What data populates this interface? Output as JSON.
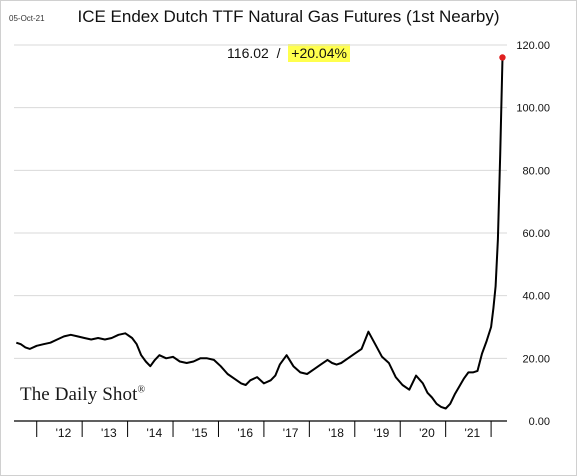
{
  "header": {
    "date": "05-Oct-21",
    "title": "ICE Endex Dutch TTF Natural Gas Futures (1st Nearby)",
    "last_value": "116.02",
    "separator": "/",
    "change": "+20.04%"
  },
  "brand": {
    "name": "The Daily Shot",
    "mark": "®"
  },
  "colors": {
    "line": "#000000",
    "endpoint": "#e02020",
    "highlight": "#ffff4d"
  },
  "chart_data": {
    "type": "line",
    "title": "ICE Endex Dutch TTF Natural Gas Futures (1st Nearby)",
    "xlabel": "",
    "ylabel": "",
    "ylim": [
      0,
      120
    ],
    "yticks": [
      0,
      20,
      40,
      60,
      80,
      100,
      120
    ],
    "ytick_labels": [
      "0.00",
      "20.00",
      "40.00",
      "60.00",
      "80.00",
      "100.00",
      "120.00"
    ],
    "xlim": [
      2011.0,
      2021.85
    ],
    "xticks": [
      2012,
      2013,
      2014,
      2015,
      2016,
      2017,
      2018,
      2019,
      2020,
      2021
    ],
    "xtick_labels": [
      "'12",
      "'13",
      "'14",
      "'15",
      "'16",
      "'17",
      "'18",
      "'19",
      "'20",
      "'21"
    ],
    "grid": "horizontal",
    "y_axis_side": "right",
    "series": [
      {
        "x": [
          2011.05,
          2011.15,
          2011.25,
          2011.35,
          2011.5,
          2011.65,
          2011.8,
          2011.95,
          2012.1,
          2012.25,
          2012.4,
          2012.55,
          2012.7,
          2012.85,
          2013.0,
          2013.15,
          2013.3,
          2013.45,
          2013.6,
          2013.7,
          2013.8,
          2013.9,
          2014.0,
          2014.1,
          2014.2,
          2014.35,
          2014.5,
          2014.65,
          2014.8,
          2014.95,
          2015.1,
          2015.25,
          2015.4,
          2015.55,
          2015.7,
          2015.85,
          2016.0,
          2016.1,
          2016.2,
          2016.35,
          2016.5,
          2016.65,
          2016.75,
          2016.85,
          2017.0,
          2017.15,
          2017.3,
          2017.45,
          2017.6,
          2017.75,
          2017.9,
          2018.0,
          2018.1,
          2018.2,
          2018.35,
          2018.5,
          2018.65,
          2018.8,
          2018.95,
          2019.1,
          2019.25,
          2019.4,
          2019.55,
          2019.7,
          2019.85,
          2020.0,
          2020.1,
          2020.2,
          2020.3,
          2020.4,
          2020.5,
          2020.6,
          2020.7,
          2020.8,
          2020.9,
          2021.0,
          2021.1,
          2021.2,
          2021.3,
          2021.4,
          2021.5,
          2021.55,
          2021.6,
          2021.65,
          2021.7,
          2021.75
        ],
        "y": [
          25.0,
          24.5,
          23.5,
          23.0,
          24.0,
          24.5,
          25.0,
          26.0,
          27.0,
          27.5,
          27.0,
          26.5,
          26.0,
          26.5,
          26.0,
          26.5,
          27.5,
          28.0,
          26.5,
          24.5,
          21.0,
          19.0,
          17.5,
          19.5,
          21.0,
          20.0,
          20.5,
          19.0,
          18.5,
          19.0,
          20.0,
          20.0,
          19.5,
          17.5,
          15.0,
          13.5,
          12.0,
          11.5,
          13.0,
          14.0,
          12.0,
          13.0,
          14.5,
          18.0,
          21.0,
          17.5,
          15.5,
          15.0,
          16.5,
          18.0,
          19.5,
          18.5,
          18.0,
          18.5,
          20.0,
          21.5,
          23.0,
          28.5,
          24.5,
          20.5,
          18.5,
          14.0,
          11.5,
          10.0,
          14.5,
          12.0,
          9.0,
          7.5,
          5.5,
          4.5,
          4.0,
          5.5,
          8.5,
          11.0,
          13.5,
          15.5,
          15.5,
          16.0,
          21.5,
          25.5,
          30.0,
          36.0,
          43.0,
          58.0,
          85.0,
          116.02
        ]
      }
    ]
  }
}
